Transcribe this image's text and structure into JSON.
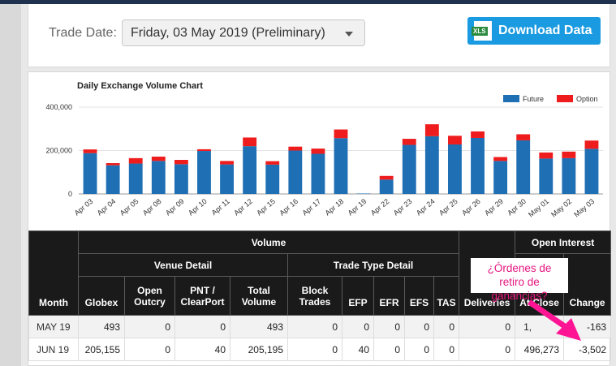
{
  "trade_date": {
    "label": "Trade Date:",
    "selected": "Friday, 03 May 2019 (Preliminary)"
  },
  "download": {
    "icon_text": "XLS",
    "label": "Download Data"
  },
  "chart_data": {
    "type": "bar",
    "title": "Daily Exchange Volume Chart",
    "categories": [
      "Apr 03",
      "Apr 04",
      "Apr 05",
      "Apr 08",
      "Apr 09",
      "Apr 10",
      "Apr 11",
      "Apr 12",
      "Apr 15",
      "Apr 16",
      "Apr 17",
      "Apr 18",
      "Apr 19",
      "Apr 22",
      "Apr 23",
      "Apr 24",
      "Apr 25",
      "Apr 26",
      "Apr 29",
      "Apr 30",
      "May 01",
      "May 02",
      "May 03"
    ],
    "stacked": true,
    "series": [
      {
        "name": "Future",
        "color": "#1f6fb5",
        "values": [
          188000,
          132000,
          140000,
          152000,
          137000,
          198000,
          136000,
          220000,
          135000,
          200000,
          185000,
          257000,
          2000,
          66000,
          226000,
          266000,
          228000,
          258000,
          152000,
          247000,
          163000,
          165000,
          208000
        ]
      },
      {
        "name": "Option",
        "color": "#ee1c1c",
        "values": [
          17000,
          10000,
          25000,
          20000,
          20000,
          8000,
          16000,
          40000,
          16000,
          18000,
          24000,
          40000,
          0,
          17000,
          28000,
          55000,
          40000,
          30000,
          18000,
          28000,
          28000,
          30000,
          38000
        ]
      }
    ],
    "ylim": [
      0,
      400000
    ],
    "yticks": [
      "0",
      "200,000",
      "400,000"
    ],
    "grid": true,
    "legend": "top-right"
  },
  "table": {
    "headers": {
      "month": "Month",
      "volume": "Volume",
      "venue_detail": "Venue Detail",
      "trade_type_detail": "Trade Type Detail",
      "deliveries": "Deliveries",
      "open_interest": "Open Interest",
      "globex": "Globex",
      "open_outcry_1": "Open",
      "open_outcry_2": "Outcry",
      "pnt_1": "PNT /",
      "pnt_2": "ClearPort",
      "total_1": "Total",
      "total_2": "Volume",
      "block_1": "Block",
      "block_2": "Trades",
      "efp": "EFP",
      "efr": "EFR",
      "efs": "EFS",
      "tas": "TAS",
      "at_close": "At Close",
      "change": "Change"
    },
    "rows": [
      {
        "month": "MAY 19",
        "globex": "493",
        "open_outcry": "0",
        "pnt": "0",
        "total": "493",
        "block": "0",
        "efp": "0",
        "efr": "0",
        "efs": "0",
        "tas": "0",
        "deliveries": "0",
        "at_close": "1,",
        "change": "-163"
      },
      {
        "month": "JUN 19",
        "globex": "205,155",
        "open_outcry": "0",
        "pnt": "40",
        "total": "205,195",
        "block": "0",
        "efp": "40",
        "efr": "0",
        "efs": "0",
        "tas": "0",
        "deliveries": "0",
        "at_close": "496,273",
        "change": "-3,502"
      }
    ]
  },
  "annotation": {
    "line1": "¿Órdenes de",
    "line2": "retiro de ganancias?",
    "color": "#e5167f"
  }
}
